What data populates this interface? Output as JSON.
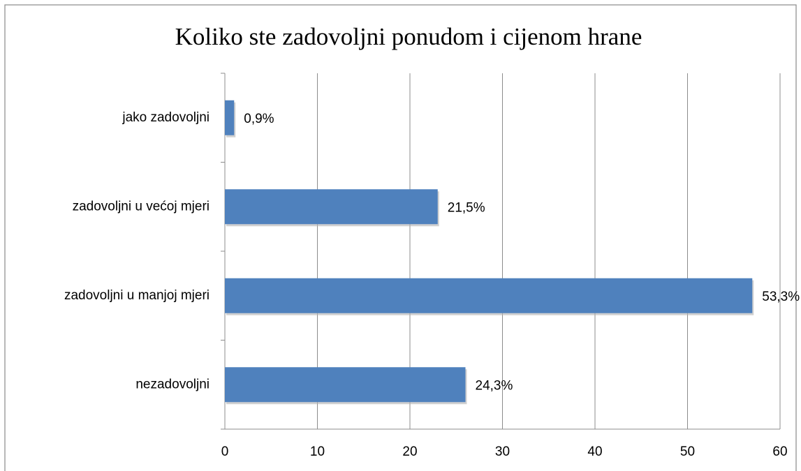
{
  "chart_data": {
    "type": "bar",
    "orientation": "horizontal",
    "title": "Koliko ste zadovoljni ponudom i cijenom hrane",
    "categories": [
      "jako zadovoljni",
      "zadovoljni u većoj mjeri",
      "zadovoljni u manjoj mjeri",
      "nezadovoljni"
    ],
    "values": [
      1,
      23,
      57,
      26
    ],
    "value_labels": [
      "0,9%",
      "21,5%",
      "53,3%",
      "24,3%"
    ],
    "color": "#4f81bd",
    "xlim": [
      0,
      60
    ],
    "xticks": [
      0,
      10,
      20,
      30,
      40,
      50,
      60
    ],
    "grid": true
  }
}
